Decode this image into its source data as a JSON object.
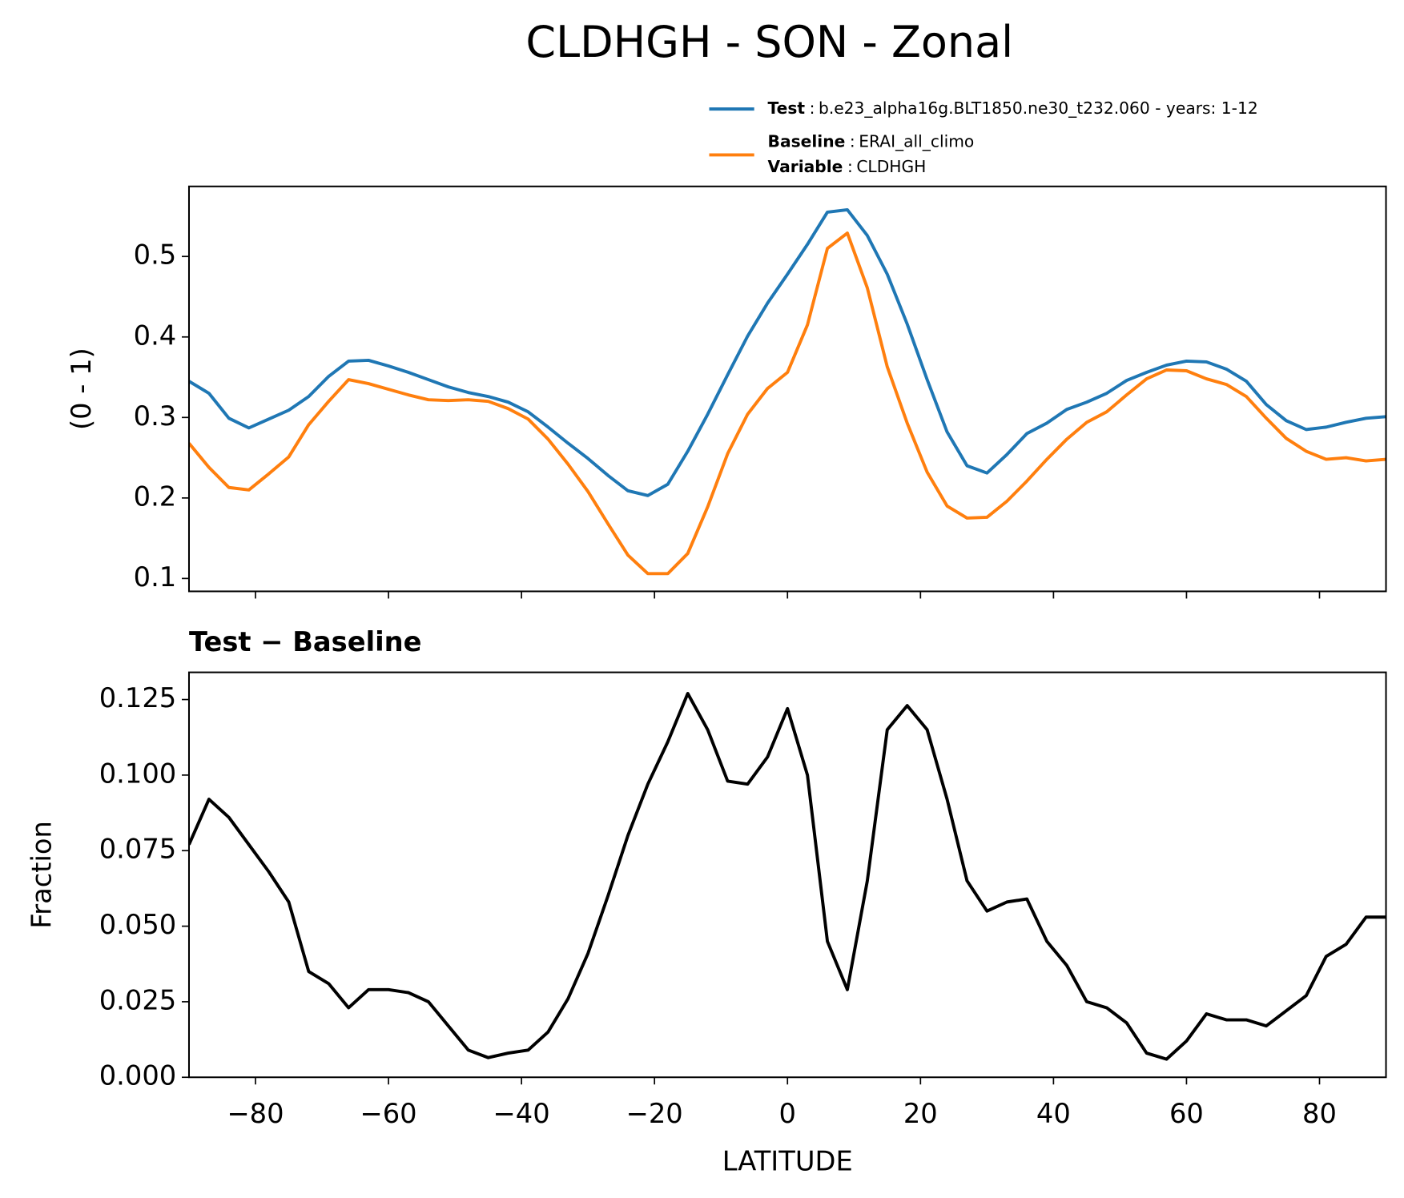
{
  "title": "CLDHGH - SON - Zonal",
  "chart_data": [
    {
      "type": "line",
      "x": [
        -90,
        -87,
        -84,
        -81,
        -78,
        -75,
        -72,
        -69,
        -66,
        -63,
        -60,
        -57,
        -54,
        -51,
        -48,
        -45,
        -42,
        -39,
        -36,
        -33,
        -30,
        -27,
        -24,
        -21,
        -18,
        -15,
        -12,
        -9,
        -6,
        -3,
        0,
        3,
        6,
        9,
        12,
        15,
        18,
        21,
        24,
        27,
        30,
        33,
        36,
        39,
        42,
        45,
        48,
        51,
        54,
        57,
        60,
        63,
        66,
        69,
        72,
        75,
        78,
        81,
        84,
        87,
        90
      ],
      "series": [
        {
          "name": "Test",
          "detail": "b.e23_alpha16g.BLT1850.ne30_t232.060 - years: 1-12",
          "color": "#1f77b4",
          "values": [
            0.345,
            0.33,
            0.299,
            0.287,
            0.298,
            0.309,
            0.326,
            0.351,
            0.37,
            0.371,
            0.364,
            0.356,
            0.347,
            0.338,
            0.331,
            0.326,
            0.319,
            0.307,
            0.288,
            0.268,
            0.249,
            0.228,
            0.209,
            0.203,
            0.217,
            0.258,
            0.304,
            0.353,
            0.401,
            0.442,
            0.478,
            0.515,
            0.555,
            0.558,
            0.526,
            0.478,
            0.416,
            0.347,
            0.282,
            0.24,
            0.231,
            0.254,
            0.28,
            0.293,
            0.31,
            0.319,
            0.33,
            0.346,
            0.356,
            0.365,
            0.37,
            0.369,
            0.36,
            0.345,
            0.316,
            0.296,
            0.285,
            0.288,
            0.294,
            0.299,
            0.301
          ]
        },
        {
          "name": "Baseline",
          "detail": "ERAI_all_climo",
          "color": "#ff7f0e",
          "values": [
            0.268,
            0.238,
            0.213,
            0.21,
            0.23,
            0.251,
            0.291,
            0.32,
            0.347,
            0.342,
            0.335,
            0.328,
            0.322,
            0.321,
            0.322,
            0.32,
            0.311,
            0.298,
            0.273,
            0.242,
            0.208,
            0.168,
            0.129,
            0.106,
            0.106,
            0.131,
            0.189,
            0.255,
            0.304,
            0.336,
            0.356,
            0.415,
            0.51,
            0.529,
            0.461,
            0.363,
            0.293,
            0.232,
            0.19,
            0.175,
            0.176,
            0.196,
            0.221,
            0.248,
            0.273,
            0.294,
            0.307,
            0.328,
            0.348,
            0.359,
            0.358,
            0.348,
            0.341,
            0.326,
            0.299,
            0.274,
            0.258,
            0.248,
            0.25,
            0.246,
            0.248
          ]
        }
      ],
      "legend_separator": ":",
      "legend_extra": {
        "name": "Variable",
        "detail": "CLDHGH"
      },
      "ylabel": "(0 - 1)",
      "xlim": [
        -90,
        90
      ],
      "ylim": [
        0.084,
        0.587
      ],
      "xticks": [
        -80,
        -60,
        -40,
        -20,
        0,
        20,
        40,
        60,
        80
      ],
      "xtick_labels": false,
      "yticks": [
        0.1,
        0.2,
        0.3,
        0.4,
        0.5
      ]
    },
    {
      "type": "line",
      "title": "Test − Baseline",
      "x": [
        -90,
        -87,
        -84,
        -81,
        -78,
        -75,
        -72,
        -69,
        -66,
        -63,
        -60,
        -57,
        -54,
        -51,
        -48,
        -45,
        -42,
        -39,
        -36,
        -33,
        -30,
        -27,
        -24,
        -21,
        -18,
        -15,
        -12,
        -9,
        -6,
        -3,
        0,
        3,
        6,
        9,
        12,
        15,
        18,
        21,
        24,
        27,
        30,
        33,
        36,
        39,
        42,
        45,
        48,
        51,
        54,
        57,
        60,
        63,
        66,
        69,
        72,
        75,
        78,
        81,
        84,
        87,
        90
      ],
      "series": [
        {
          "color": "#000000",
          "values": [
            0.077,
            0.092,
            0.086,
            0.077,
            0.068,
            0.058,
            0.035,
            0.031,
            0.023,
            0.029,
            0.029,
            0.028,
            0.025,
            0.017,
            0.009,
            0.0065,
            0.008,
            0.009,
            0.015,
            0.026,
            0.041,
            0.06,
            0.08,
            0.097,
            0.111,
            0.127,
            0.115,
            0.098,
            0.097,
            0.106,
            0.122,
            0.1,
            0.045,
            0.029,
            0.065,
            0.115,
            0.123,
            0.115,
            0.092,
            0.065,
            0.055,
            0.058,
            0.059,
            0.045,
            0.037,
            0.025,
            0.023,
            0.018,
            0.008,
            0.006,
            0.012,
            0.021,
            0.019,
            0.019,
            0.017,
            0.022,
            0.027,
            0.04,
            0.044,
            0.053,
            0.053
          ]
        }
      ],
      "xlabel": "LATITUDE",
      "ylabel": "Fraction",
      "xlim": [
        -90,
        90
      ],
      "ylim": [
        0,
        0.134
      ],
      "xticks": [
        {
          "value": -80,
          "label": "−80"
        },
        {
          "value": -60,
          "label": "−60"
        },
        {
          "value": -40,
          "label": "−40"
        },
        {
          "value": -20,
          "label": "−20"
        },
        0,
        20,
        40,
        60,
        80
      ],
      "xtick_labels": true,
      "yticks": [
        {
          "value": 0,
          "label": "0.000"
        },
        {
          "value": 0.025,
          "label": "0.025"
        },
        {
          "value": 0.05,
          "label": "0.050"
        },
        {
          "value": 0.075,
          "label": "0.075"
        },
        {
          "value": 0.1,
          "label": "0.100"
        },
        {
          "value": 0.125,
          "label": "0.125"
        }
      ]
    }
  ]
}
